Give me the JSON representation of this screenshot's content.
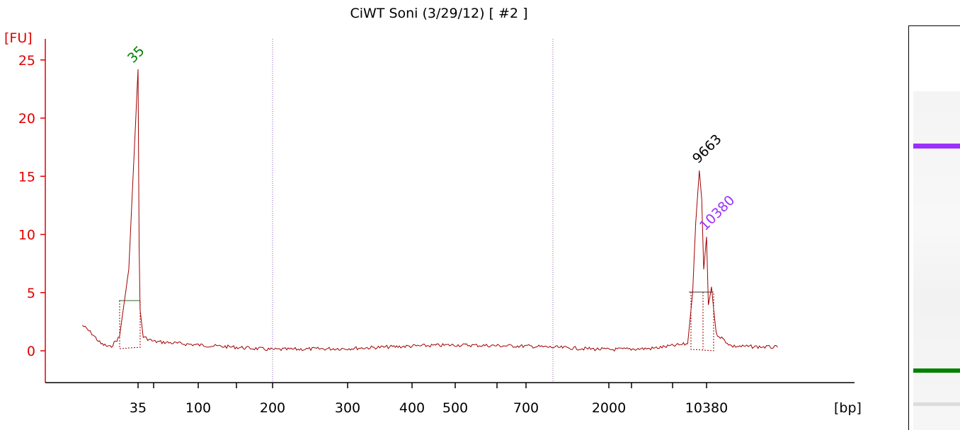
{
  "chart_data": {
    "type": "line",
    "title": "CiWT Soni (3/29/12)  [ #2 ]",
    "ylabel": "[FU]",
    "xlabel": "[bp]",
    "ylim": [
      -2.6,
      26
    ],
    "yticks": [
      0,
      5,
      10,
      15,
      20,
      25
    ],
    "xticks": [
      "35",
      "100",
      "200",
      "300",
      "400",
      "500",
      "700",
      "2000",
      "10380"
    ],
    "grid": false,
    "series": [
      {
        "color": "#a00000",
        "x_scale": "bp (nonlinear, ladder-calibrated)",
        "points": [
          [
            29,
            2.2
          ],
          [
            30,
            1.5
          ],
          [
            31,
            0.6
          ],
          [
            32,
            0.3
          ],
          [
            33,
            1.2
          ],
          [
            34,
            7
          ],
          [
            35,
            24.2
          ],
          [
            36,
            9
          ],
          [
            37,
            3.5
          ],
          [
            40,
            1.2
          ],
          [
            50,
            0.8
          ],
          [
            100,
            0.5
          ],
          [
            150,
            0.3
          ],
          [
            200,
            0.1
          ],
          [
            300,
            0.2
          ],
          [
            400,
            0.4
          ],
          [
            500,
            0.5
          ],
          [
            700,
            0.4
          ],
          [
            1000,
            0.3
          ],
          [
            2000,
            0.1
          ],
          [
            5000,
            0.2
          ],
          [
            8500,
            0.6
          ],
          [
            9000,
            5
          ],
          [
            9300,
            11
          ],
          [
            9663,
            15.5
          ],
          [
            9900,
            13
          ],
          [
            10100,
            7
          ],
          [
            10380,
            9.8
          ],
          [
            10500,
            4
          ],
          [
            10700,
            5.5
          ],
          [
            11000,
            1.5
          ],
          [
            12000,
            0.4
          ],
          [
            15000,
            0.3
          ]
        ]
      }
    ],
    "peaks": [
      {
        "label": "35",
        "bp": 35,
        "fu": 24.2,
        "color": "#008000"
      },
      {
        "label": "9663",
        "bp": 9663,
        "fu": 15.5,
        "color": "#000000"
      },
      {
        "label": "10380",
        "bp": 10380,
        "fu": 9.8,
        "color": "#9b30ff"
      }
    ]
  },
  "gel": {
    "bands": [
      {
        "name": "upper-marker-band",
        "color": "#9b30ff"
      },
      {
        "name": "lower-marker-band",
        "color": "#008000"
      }
    ]
  }
}
